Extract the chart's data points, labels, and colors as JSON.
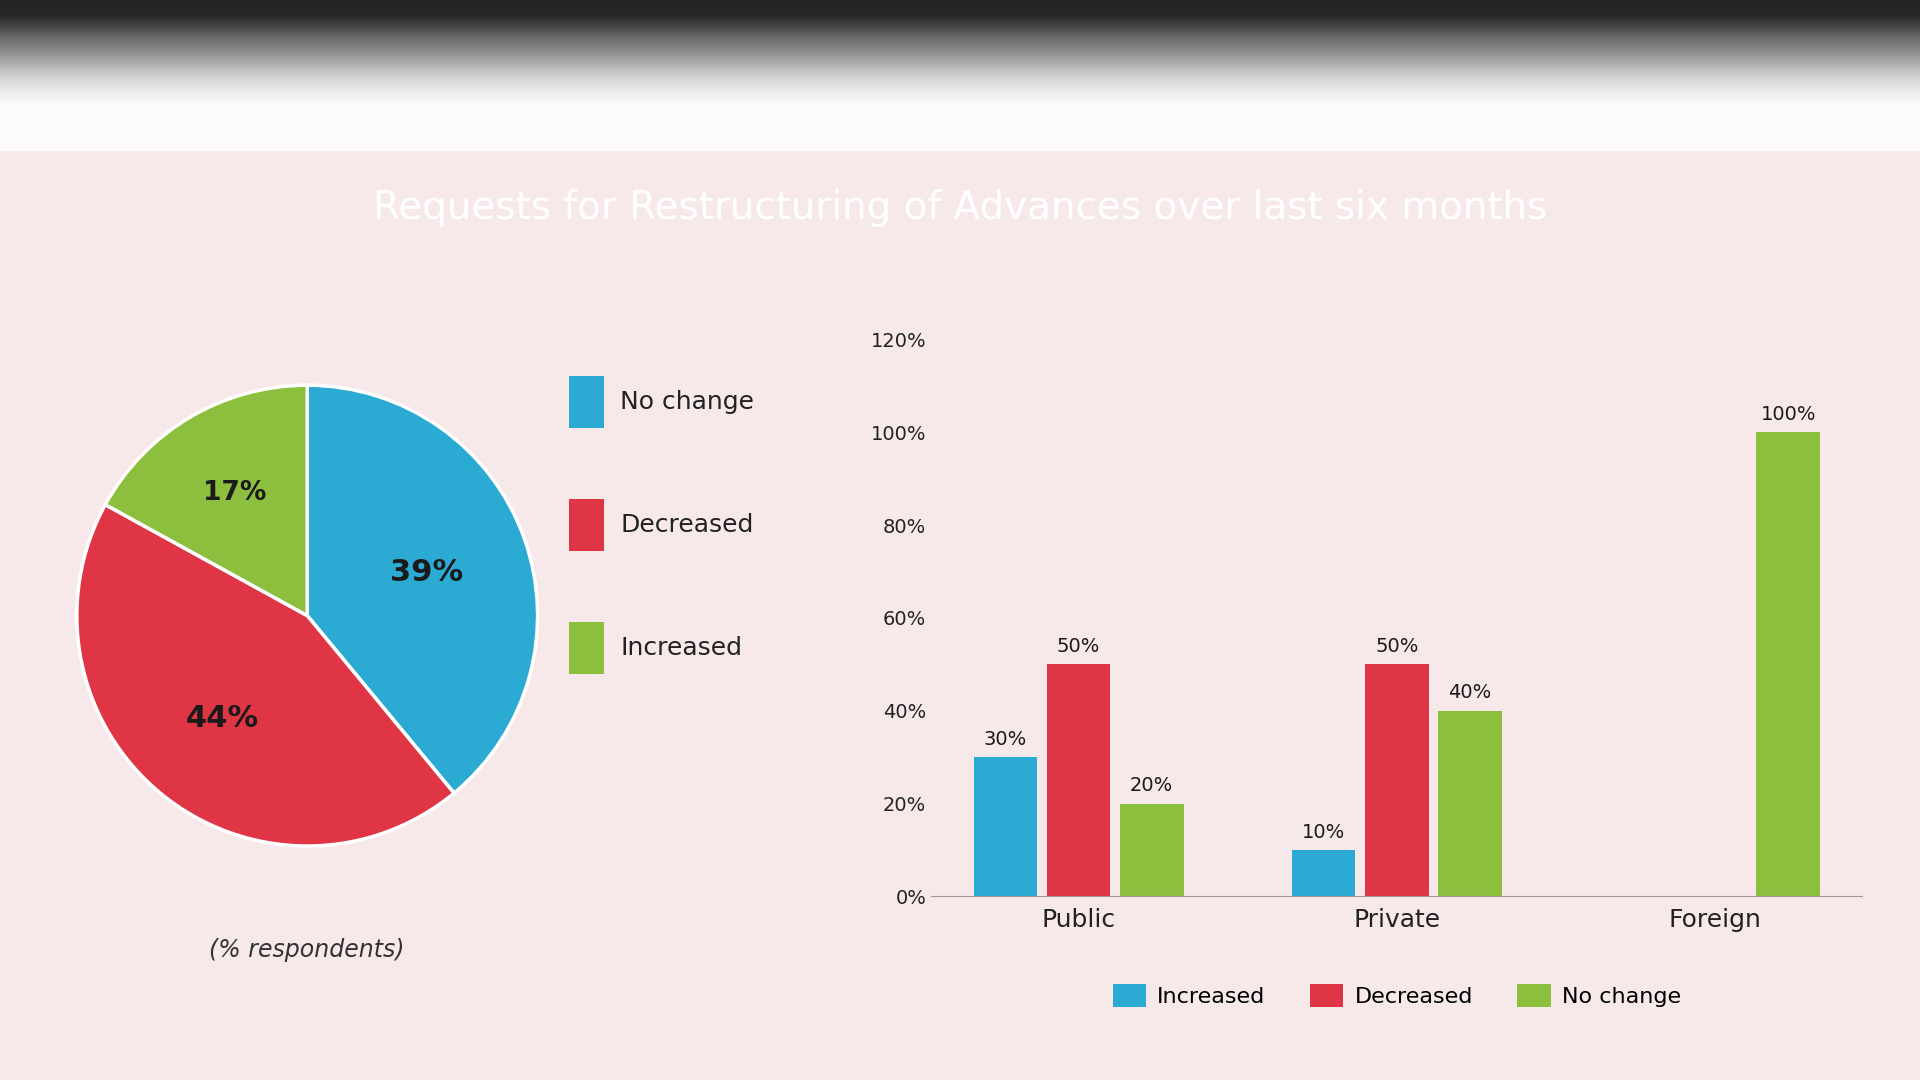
{
  "title": "Requests for Restructuring of Advances over last six months",
  "title_bg": "#2a2a2a",
  "title_color": "#ffffff",
  "bg_color": "#f7e8ea",
  "pie_values": [
    39,
    44,
    17
  ],
  "pie_labels": [
    "39%",
    "44%",
    "17%"
  ],
  "pie_colors": [
    "#2baad4",
    "#e03545",
    "#8dbf3e"
  ],
  "pie_legend_labels": [
    "No change",
    "Decreased",
    "Increased"
  ],
  "pie_legend_colors": [
    "#2baad4",
    "#e03545",
    "#8dbf3e"
  ],
  "pie_subtitle": "(% respondents)",
  "bar_categories": [
    "Public",
    "Private",
    "Foreign"
  ],
  "bar_increased": [
    30,
    10,
    0
  ],
  "bar_decreased": [
    50,
    50,
    0
  ],
  "bar_nochange": [
    20,
    40,
    100
  ],
  "bar_color_increased": "#2baad4",
  "bar_color_decreased": "#e03545",
  "bar_color_nochange": "#8dbf3e",
  "bar_yticks": [
    0,
    20,
    40,
    60,
    80,
    100,
    120
  ],
  "bar_ytick_labels": [
    "0%",
    "20%",
    "40%",
    "60%",
    "80%",
    "100%",
    "120%"
  ],
  "bar_value_labels_inc": [
    "30%",
    "10%",
    ""
  ],
  "bar_value_labels_dec": [
    "50%",
    "50%",
    ""
  ],
  "bar_value_labels_noc": [
    "20%",
    "40%",
    "100%"
  ],
  "bar_legend_labels": [
    "Increased",
    "Decreased",
    "No change"
  ]
}
